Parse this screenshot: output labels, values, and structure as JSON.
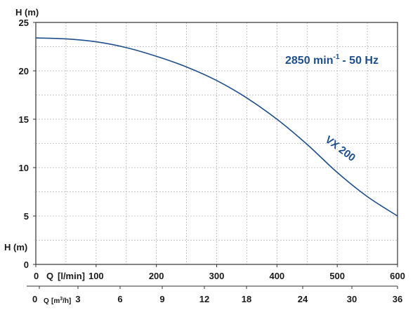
{
  "chart_data": {
    "type": "line",
    "y_axis": {
      "title": "H (m)",
      "ticks": [
        0,
        5,
        10,
        15,
        20,
        25
      ],
      "range": [
        0,
        25
      ],
      "minor_step": 2.5
    },
    "y_axis_bottom_title": "H (m)",
    "x_axis_lmin": {
      "label_Q": "Q",
      "label_unit": "[l/min]",
      "ticks": [
        0,
        100,
        200,
        300,
        400,
        500,
        600
      ],
      "range": [
        0,
        600
      ],
      "minor_step": 50
    },
    "x_axis_m3h": {
      "label_Q": "Q",
      "label_unit_prefix": "[m",
      "label_unit_sup": "3",
      "label_unit_suffix": "/h]",
      "ticks": [
        0,
        3,
        6,
        9,
        12,
        18,
        24,
        30,
        36
      ],
      "range": [
        0,
        36
      ]
    },
    "grid": true,
    "series": [
      {
        "name": "VX 200",
        "color": "#1f4e8c",
        "x": [
          0,
          50,
          100,
          150,
          200,
          250,
          300,
          350,
          400,
          450,
          500,
          550,
          600
        ],
        "y": [
          23.4,
          23.3,
          23.0,
          22.4,
          21.5,
          20.4,
          19.0,
          17.2,
          15.0,
          12.4,
          9.5,
          7.0,
          5.0
        ]
      }
    ],
    "annotation": {
      "speed_text": "2850 min",
      "speed_sup": "-1",
      "freq_text": "-  50 Hz",
      "color": "#1f4e8c"
    }
  }
}
